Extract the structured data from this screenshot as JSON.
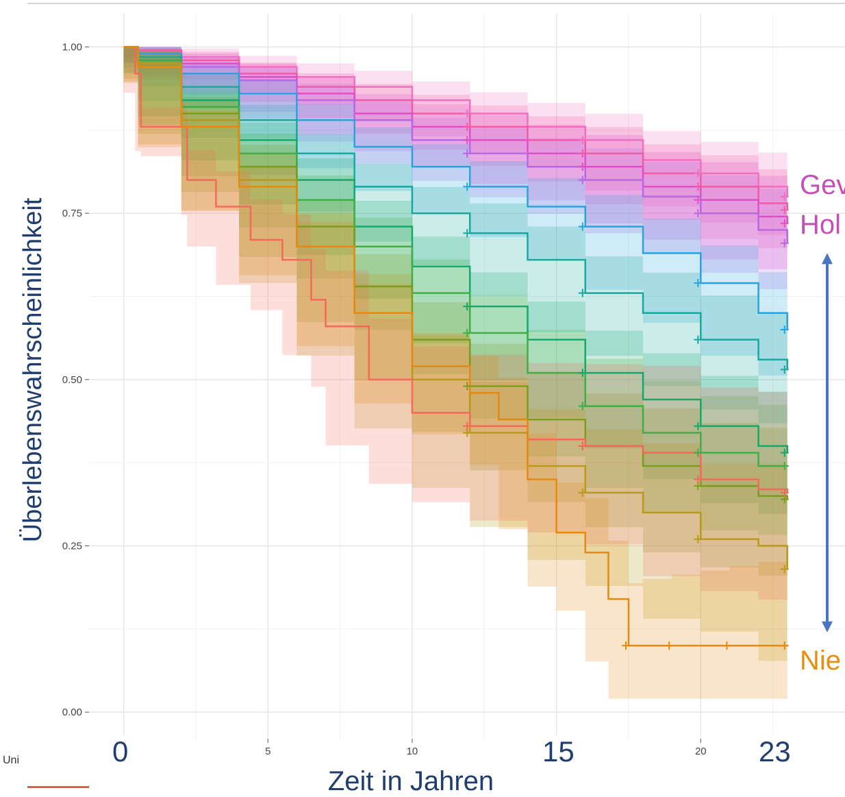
{
  "chart_data": {
    "type": "line",
    "subtype": "kaplan-meier survival curves with confidence bands",
    "xlabel": "Zeit in Jahren",
    "ylabel": "Überlebenswahrscheinlichkeit",
    "xlim": [
      -1.2,
      25
    ],
    "ylim": [
      -0.04,
      1.05
    ],
    "x_ticks": [
      0,
      5,
      10,
      15,
      20
    ],
    "x_tick_labels": [
      "",
      "5",
      "10",
      "",
      "20"
    ],
    "y_ticks": [
      0,
      0.25,
      0.5,
      0.75,
      1.0
    ],
    "y_tick_labels": [
      "0.00",
      "0.25",
      "0.50",
      "0.75",
      "1.00"
    ],
    "grid": true,
    "big_x_labels": [
      {
        "value": 0,
        "label": "0"
      },
      {
        "value": 15,
        "label": "15"
      },
      {
        "value": 23,
        "label": "23"
      }
    ],
    "annotations": {
      "high_line1": "Gev",
      "high_line2": "Hol",
      "low": "Nie"
    },
    "arrow": {
      "x": 24.8,
      "y_from": 0.12,
      "y_to": 0.69,
      "color": "#4a76c0"
    },
    "series": [
      {
        "color": "#f06fc0",
        "x": [
          0,
          0.5,
          2,
          4,
          6,
          8,
          10,
          12,
          14,
          16,
          18,
          20,
          22,
          23
        ],
        "values": [
          1.0,
          0.995,
          0.985,
          0.97,
          0.955,
          0.94,
          0.92,
          0.9,
          0.88,
          0.86,
          0.83,
          0.81,
          0.79,
          0.775
        ],
        "band": 0.05
      },
      {
        "color": "#ef5ca6",
        "x": [
          0,
          0.5,
          2,
          4,
          6,
          8,
          10,
          12,
          14,
          16,
          18,
          20,
          22,
          23
        ],
        "values": [
          1.0,
          0.995,
          0.98,
          0.96,
          0.94,
          0.92,
          0.9,
          0.88,
          0.86,
          0.84,
          0.81,
          0.79,
          0.765,
          0.755
        ],
        "band": 0.05
      },
      {
        "color": "#e14fc8",
        "x": [
          0,
          0.5,
          2,
          4,
          6,
          8,
          10,
          12,
          14,
          16,
          18,
          20,
          22,
          23
        ],
        "values": [
          1.0,
          0.99,
          0.975,
          0.955,
          0.93,
          0.9,
          0.88,
          0.86,
          0.84,
          0.82,
          0.79,
          0.77,
          0.745,
          0.735
        ],
        "band": 0.06
      },
      {
        "color": "#b967e6",
        "x": [
          0,
          0.5,
          2,
          4,
          6,
          8,
          10,
          12,
          14,
          16,
          18,
          20,
          22,
          23
        ],
        "values": [
          1.0,
          0.99,
          0.97,
          0.95,
          0.92,
          0.89,
          0.86,
          0.84,
          0.82,
          0.8,
          0.775,
          0.75,
          0.725,
          0.705
        ],
        "band": 0.06
      },
      {
        "color": "#2aa2dd",
        "x": [
          0,
          0.5,
          2,
          4,
          6,
          8,
          10,
          12,
          14,
          16,
          18,
          20,
          22,
          23
        ],
        "values": [
          1.0,
          0.99,
          0.96,
          0.93,
          0.89,
          0.85,
          0.82,
          0.79,
          0.76,
          0.73,
          0.69,
          0.645,
          0.6,
          0.575
        ],
        "band": 0.06
      },
      {
        "color": "#17a89e",
        "x": [
          0,
          0.5,
          2,
          4,
          6,
          8,
          10,
          12,
          14,
          16,
          18,
          20,
          22,
          23
        ],
        "values": [
          1.0,
          0.985,
          0.94,
          0.89,
          0.84,
          0.79,
          0.75,
          0.72,
          0.68,
          0.63,
          0.6,
          0.56,
          0.53,
          0.515
        ],
        "band": 0.07
      },
      {
        "color": "#13a96b",
        "x": [
          0,
          0.5,
          2,
          4,
          6,
          8,
          10,
          12,
          14,
          16,
          18,
          20,
          22,
          23
        ],
        "values": [
          1.0,
          0.98,
          0.92,
          0.86,
          0.8,
          0.73,
          0.67,
          0.61,
          0.56,
          0.51,
          0.47,
          0.43,
          0.4,
          0.39
        ],
        "band": 0.08
      },
      {
        "color": "#3fae45",
        "x": [
          0,
          0.5,
          2,
          4,
          6,
          8,
          10,
          12,
          14,
          16,
          18,
          20,
          22,
          23
        ],
        "values": [
          1.0,
          0.98,
          0.91,
          0.84,
          0.77,
          0.7,
          0.63,
          0.57,
          0.51,
          0.46,
          0.42,
          0.39,
          0.37,
          0.37
        ],
        "band": 0.09
      },
      {
        "color": "#7a9d1f",
        "x": [
          0,
          0.5,
          2,
          4,
          6,
          8,
          10,
          12,
          14,
          16,
          18,
          20,
          22,
          23
        ],
        "values": [
          1.0,
          0.975,
          0.9,
          0.82,
          0.73,
          0.64,
          0.56,
          0.49,
          0.44,
          0.4,
          0.37,
          0.34,
          0.325,
          0.32
        ],
        "band": 0.1
      },
      {
        "color": "#b79a18",
        "x": [
          0,
          0.5,
          2,
          4,
          6,
          8,
          10,
          12,
          14,
          16,
          18,
          20,
          22,
          23
        ],
        "values": [
          1.0,
          0.975,
          0.89,
          0.8,
          0.7,
          0.6,
          0.5,
          0.42,
          0.37,
          0.33,
          0.3,
          0.26,
          0.25,
          0.215
        ],
        "band": 0.12
      },
      {
        "color": "#f36a5a",
        "x": [
          0,
          0.4,
          0.6,
          2,
          2.2,
          3.2,
          4.4,
          5.5,
          6.5,
          7,
          8.5,
          10,
          12,
          14,
          16,
          18,
          20,
          22,
          23
        ],
        "values": [
          1.0,
          0.96,
          0.88,
          0.88,
          0.8,
          0.76,
          0.71,
          0.68,
          0.62,
          0.58,
          0.5,
          0.45,
          0.43,
          0.41,
          0.4,
          0.39,
          0.35,
          0.335,
          0.33
        ],
        "band": 0.14
      },
      {
        "color": "#e58a10",
        "x": [
          0,
          0.5,
          2,
          4,
          6,
          8,
          10,
          12,
          13,
          14,
          15,
          16,
          16.8,
          17.5,
          18,
          19,
          20,
          21,
          22,
          23
        ],
        "values": [
          1.0,
          0.97,
          0.88,
          0.79,
          0.7,
          0.6,
          0.52,
          0.48,
          0.44,
          0.35,
          0.27,
          0.24,
          0.17,
          0.1,
          0.1,
          0.1,
          0.1,
          0.1,
          0.1,
          0.1
        ],
        "band": 0.12
      }
    ]
  }
}
